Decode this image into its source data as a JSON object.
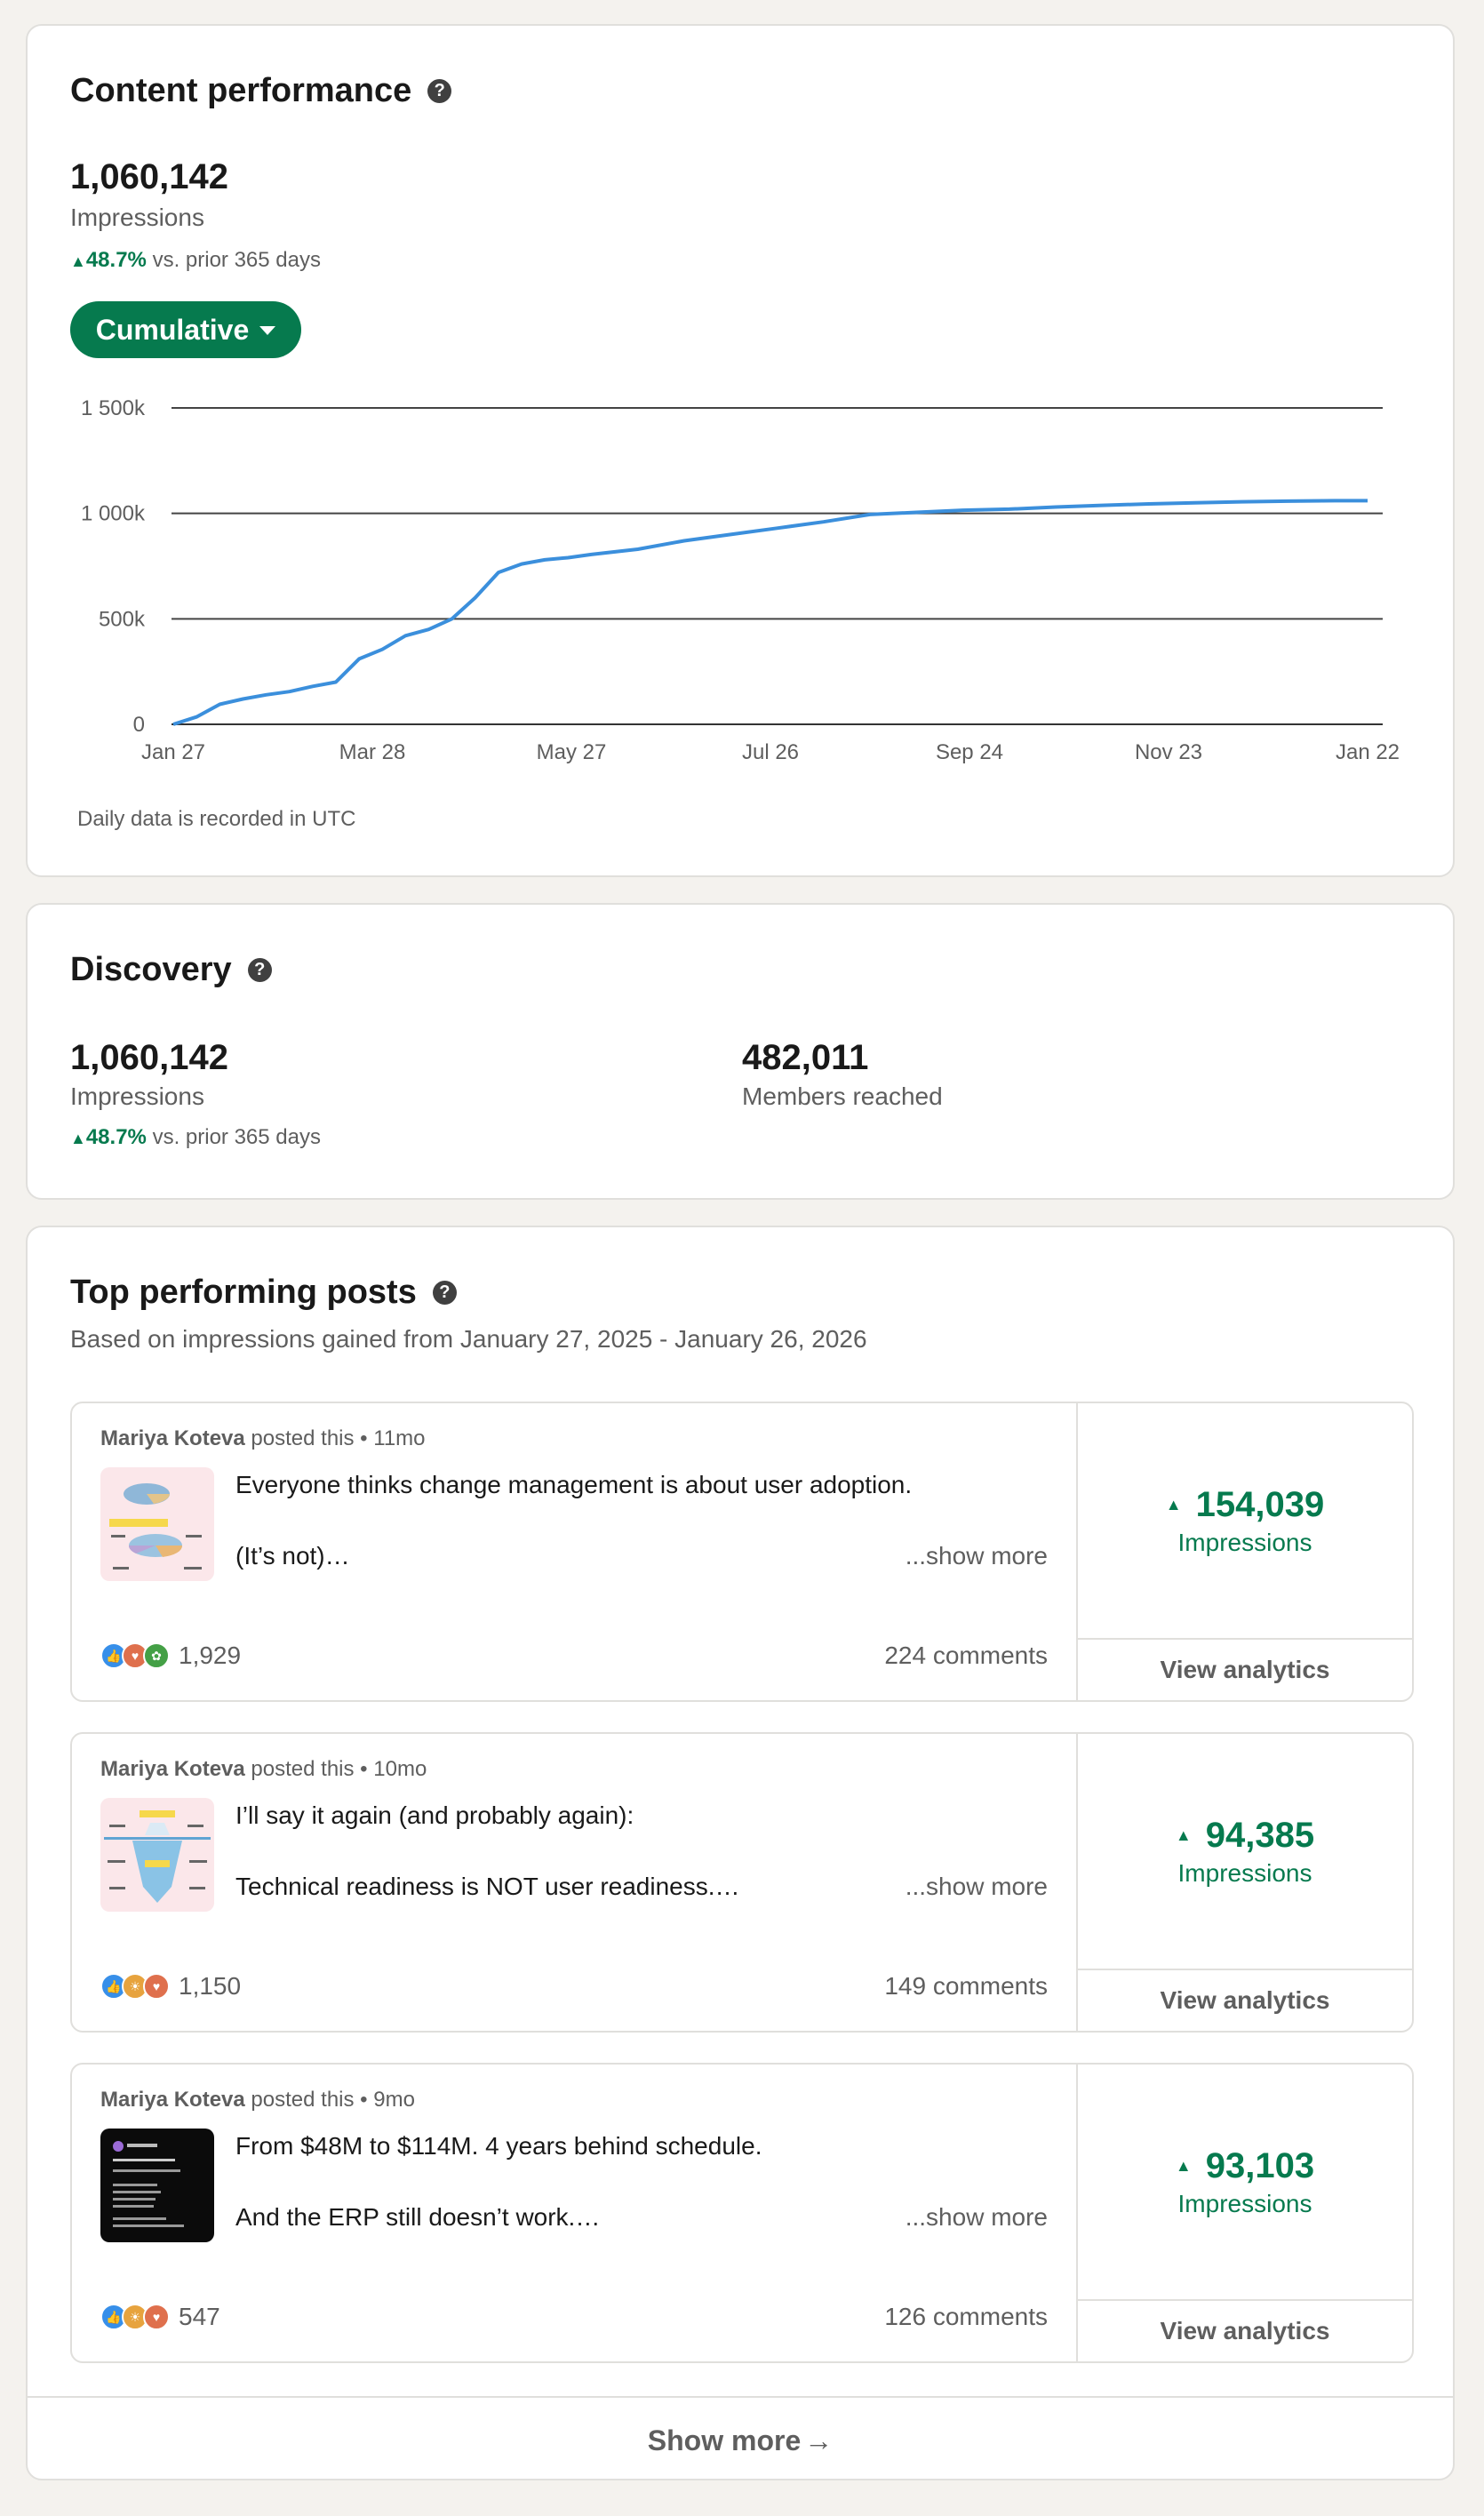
{
  "content_performance": {
    "title": "Content performance",
    "impressions_value": "1,060,142",
    "impressions_label": "Impressions",
    "delta_pct": "48.7%",
    "delta_text": "vs. prior 365 days",
    "dropdown_label": "Cumulative",
    "footnote": "Daily data is recorded in UTC",
    "accent_color": "#067a4e",
    "line_color": "#3b8fdc"
  },
  "chart_data": {
    "type": "line",
    "title": "",
    "xlabel": "",
    "ylabel": "",
    "ylim": [
      0,
      1500000
    ],
    "y_ticks": [
      0,
      500000,
      1000000,
      1500000
    ],
    "y_tick_labels": [
      "0",
      "500k",
      "1 000k",
      "1 500k"
    ],
    "x_ticks": [
      "2025-01-27",
      "2025-03-28",
      "2025-05-27",
      "2025-07-26",
      "2025-09-24",
      "2025-11-23",
      "2026-01-22"
    ],
    "x_tick_labels": [
      "Jan 27",
      "Mar 28",
      "May 27",
      "Jul 26",
      "Sep 24",
      "Nov 23",
      "Jan 22"
    ],
    "grid": true,
    "series": [
      {
        "x": [
          "2025-01-27",
          "2025-02-03",
          "2025-02-10",
          "2025-02-17",
          "2025-02-24",
          "2025-03-03",
          "2025-03-10",
          "2025-03-17",
          "2025-03-24",
          "2025-03-31",
          "2025-04-07",
          "2025-04-14",
          "2025-04-21",
          "2025-04-28",
          "2025-05-05",
          "2025-05-12",
          "2025-05-19",
          "2025-05-26",
          "2025-06-02",
          "2025-06-16",
          "2025-06-30",
          "2025-07-14",
          "2025-07-28",
          "2025-08-11",
          "2025-08-25",
          "2025-09-08",
          "2025-09-22",
          "2025-10-06",
          "2025-10-20",
          "2025-11-03",
          "2025-11-17",
          "2025-12-01",
          "2025-12-15",
          "2025-12-29",
          "2026-01-12",
          "2026-01-22"
        ],
        "values": [
          0,
          35000,
          95000,
          120000,
          140000,
          155000,
          180000,
          200000,
          310000,
          355000,
          420000,
          450000,
          500000,
          600000,
          720000,
          760000,
          780000,
          790000,
          805000,
          830000,
          870000,
          900000,
          930000,
          960000,
          995000,
          1005000,
          1015000,
          1020000,
          1030000,
          1038000,
          1045000,
          1050000,
          1055000,
          1058000,
          1060000,
          1060142
        ]
      }
    ]
  },
  "discovery": {
    "title": "Discovery",
    "impressions_value": "1,060,142",
    "impressions_label": "Impressions",
    "delta_pct": "48.7%",
    "delta_text": "vs. prior 365 days",
    "members_value": "482,011",
    "members_label": "Members reached"
  },
  "top_posts": {
    "title": "Top performing posts",
    "subtitle": "Based on impressions gained from January 27, 2025 - January 26, 2026",
    "show_more": "Show more",
    "posts": [
      {
        "author": "Mariya Koteva",
        "posted": "posted this",
        "age": "11mo",
        "line1": "Everyone thinks change management is about user adoption.",
        "line2": "(It’s not)…",
        "show_more": "...show more",
        "reactions": "1,929",
        "comments": "224 comments",
        "impressions": "154,039",
        "impressions_label": "Impressions",
        "view_analytics": "View analytics"
      },
      {
        "author": "Mariya Koteva",
        "posted": "posted this",
        "age": "10mo",
        "line1": "I’ll say it again (and probably again):",
        "line2": "Technical readiness is NOT user readiness.…",
        "show_more": "...show more",
        "reactions": "1,150",
        "comments": "149 comments",
        "impressions": "94,385",
        "impressions_label": "Impressions",
        "view_analytics": "View analytics"
      },
      {
        "author": "Mariya Koteva",
        "posted": "posted this",
        "age": "9mo",
        "line1": "From $48M to $114M. 4 years behind schedule.",
        "line2": "And the ERP still doesn’t work.…",
        "show_more": "...show more",
        "reactions": "547",
        "comments": "126 comments",
        "impressions": "93,103",
        "impressions_label": "Impressions",
        "view_analytics": "View analytics"
      }
    ]
  }
}
